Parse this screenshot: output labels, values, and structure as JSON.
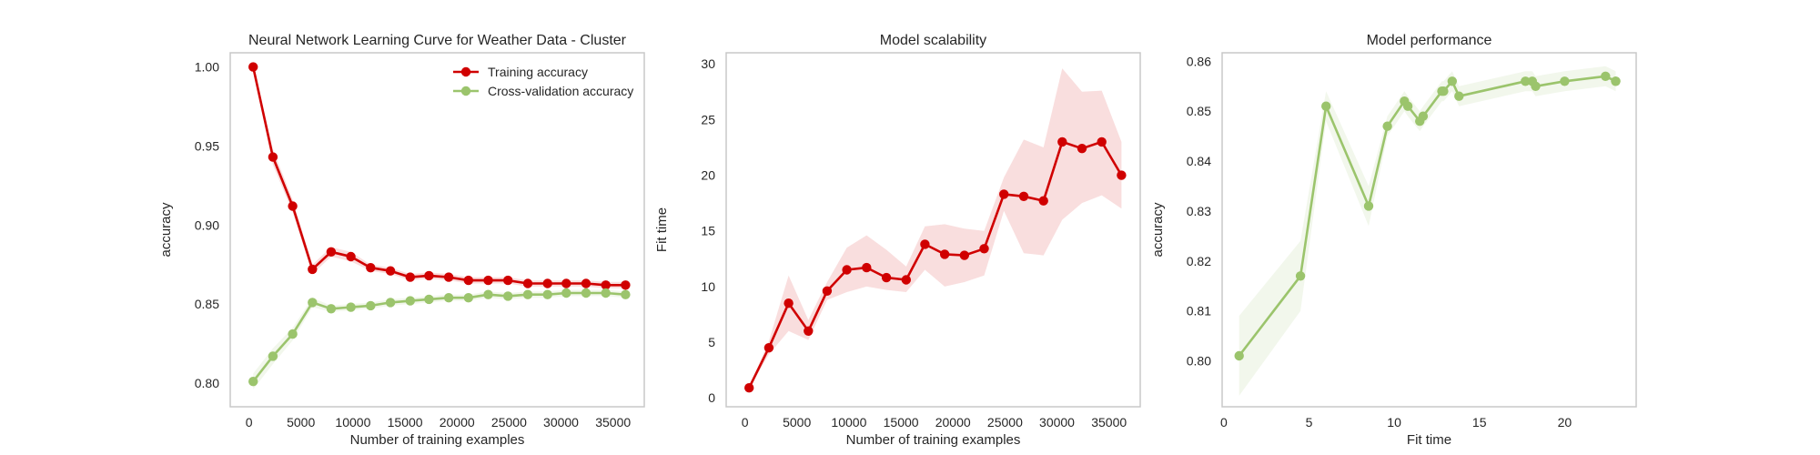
{
  "chart_data": [
    {
      "type": "line",
      "title": "Neural Network Learning Curve for Weather Data - Cluster",
      "xlabel": "Number of training examples",
      "ylabel": "accuracy",
      "xlim": [
        -1800,
        38000
      ],
      "ylim": [
        0.785,
        1.009
      ],
      "xticks": [
        0,
        5000,
        10000,
        15000,
        20000,
        25000,
        30000,
        35000
      ],
      "yticks": [
        0.8,
        0.85,
        0.9,
        0.95,
        1.0
      ],
      "ytick_labels": [
        "0.80",
        "0.85",
        "0.90",
        "0.95",
        "1.00"
      ],
      "grid": false,
      "legend": "top-right",
      "x": [
        400,
        2300,
        4200,
        6100,
        7900,
        9800,
        11700,
        13600,
        15500,
        17300,
        19200,
        21100,
        23000,
        24900,
        26800,
        28700,
        30500,
        32400,
        34300,
        36200
      ],
      "series": [
        {
          "name": "Training accuracy",
          "color": "#d00000",
          "values": [
            1.0,
            0.943,
            0.912,
            0.872,
            0.883,
            0.88,
            0.873,
            0.871,
            0.867,
            0.868,
            0.867,
            0.865,
            0.865,
            0.865,
            0.863,
            0.863,
            0.863,
            0.863,
            0.862,
            0.862
          ],
          "band_lower": [
            1.0,
            0.938,
            0.908,
            0.869,
            0.88,
            0.877,
            0.871,
            0.869,
            0.865,
            0.866,
            0.865,
            0.863,
            0.863,
            0.863,
            0.861,
            0.861,
            0.861,
            0.861,
            0.86,
            0.86
          ],
          "band_upper": [
            1.0,
            0.948,
            0.916,
            0.875,
            0.886,
            0.883,
            0.875,
            0.873,
            0.869,
            0.87,
            0.869,
            0.867,
            0.867,
            0.867,
            0.865,
            0.865,
            0.865,
            0.865,
            0.864,
            0.864
          ]
        },
        {
          "name": "Cross-validation accuracy",
          "color": "#9bc46c",
          "values": [
            0.801,
            0.817,
            0.831,
            0.851,
            0.847,
            0.848,
            0.849,
            0.851,
            0.852,
            0.853,
            0.854,
            0.854,
            0.856,
            0.855,
            0.856,
            0.856,
            0.857,
            0.857,
            0.857,
            0.856
          ],
          "band_lower": [
            0.796,
            0.812,
            0.827,
            0.848,
            0.845,
            0.846,
            0.847,
            0.849,
            0.85,
            0.851,
            0.852,
            0.852,
            0.854,
            0.853,
            0.854,
            0.854,
            0.855,
            0.855,
            0.855,
            0.854
          ],
          "band_upper": [
            0.806,
            0.822,
            0.835,
            0.854,
            0.849,
            0.85,
            0.851,
            0.853,
            0.854,
            0.855,
            0.856,
            0.856,
            0.858,
            0.857,
            0.858,
            0.858,
            0.859,
            0.859,
            0.859,
            0.858
          ]
        }
      ]
    },
    {
      "type": "line",
      "title": "Model scalability",
      "xlabel": "Number of training examples",
      "ylabel": "Fit time",
      "xlim": [
        -1800,
        38000
      ],
      "ylim": [
        -0.8,
        31.0
      ],
      "xticks": [
        0,
        5000,
        10000,
        15000,
        20000,
        25000,
        30000,
        35000
      ],
      "yticks": [
        0,
        5,
        10,
        15,
        20,
        25,
        30
      ],
      "ytick_labels": [
        "0",
        "5",
        "10",
        "15",
        "20",
        "25",
        "30"
      ],
      "grid": false,
      "x": [
        400,
        2300,
        4200,
        6100,
        7900,
        9800,
        11700,
        13600,
        15500,
        17300,
        19200,
        21100,
        23000,
        24900,
        26800,
        28700,
        30500,
        32400,
        34300,
        36200
      ],
      "series": [
        {
          "color": "#d00000",
          "values": [
            0.9,
            4.5,
            8.5,
            6.0,
            9.6,
            11.5,
            11.7,
            10.8,
            10.6,
            13.8,
            12.9,
            12.8,
            13.4,
            18.3,
            18.1,
            17.7,
            23.0,
            22.4,
            23.0,
            20.0
          ],
          "band_lower": [
            0.8,
            3.9,
            6.0,
            5.2,
            8.8,
            9.5,
            10.0,
            9.7,
            9.5,
            11.5,
            10.0,
            10.4,
            11.0,
            16.8,
            13.0,
            12.8,
            16.0,
            17.5,
            18.2,
            17.0
          ],
          "band_upper": [
            1.0,
            5.1,
            11.0,
            7.0,
            10.4,
            13.5,
            14.6,
            13.3,
            11.8,
            15.4,
            15.6,
            15.2,
            15.0,
            19.8,
            23.2,
            22.5,
            29.6,
            27.5,
            27.6,
            23.0
          ]
        }
      ]
    },
    {
      "type": "line",
      "title": "Model performance",
      "xlabel": "Fit time",
      "ylabel": "accuracy",
      "xlim": [
        -0.1,
        24.2
      ],
      "ylim": [
        0.7908,
        0.8617
      ],
      "xticks": [
        0,
        5,
        10,
        15,
        20
      ],
      "yticks": [
        0.8,
        0.81,
        0.82,
        0.83,
        0.84,
        0.85,
        0.86
      ],
      "ytick_labels": [
        "0.80",
        "0.81",
        "0.82",
        "0.83",
        "0.84",
        "0.85",
        "0.86"
      ],
      "grid": false,
      "x": [
        0.9,
        4.5,
        6.0,
        8.5,
        9.6,
        10.6,
        10.8,
        11.5,
        11.7,
        12.8,
        12.9,
        13.4,
        13.8,
        17.7,
        18.1,
        18.3,
        20.0,
        22.4,
        23.0,
        23.0
      ],
      "series": [
        {
          "color": "#9bc46c",
          "values": [
            0.801,
            0.817,
            0.851,
            0.831,
            0.847,
            0.852,
            0.851,
            0.848,
            0.849,
            0.854,
            0.854,
            0.856,
            0.853,
            0.856,
            0.856,
            0.855,
            0.856,
            0.857,
            0.856,
            0.856
          ],
          "band_lower": [
            0.793,
            0.81,
            0.848,
            0.827,
            0.845,
            0.85,
            0.849,
            0.846,
            0.847,
            0.852,
            0.852,
            0.854,
            0.851,
            0.854,
            0.854,
            0.853,
            0.854,
            0.855,
            0.854,
            0.854
          ],
          "band_upper": [
            0.809,
            0.824,
            0.854,
            0.835,
            0.849,
            0.854,
            0.853,
            0.85,
            0.851,
            0.856,
            0.856,
            0.858,
            0.855,
            0.858,
            0.858,
            0.857,
            0.858,
            0.859,
            0.858,
            0.858
          ]
        }
      ]
    }
  ]
}
